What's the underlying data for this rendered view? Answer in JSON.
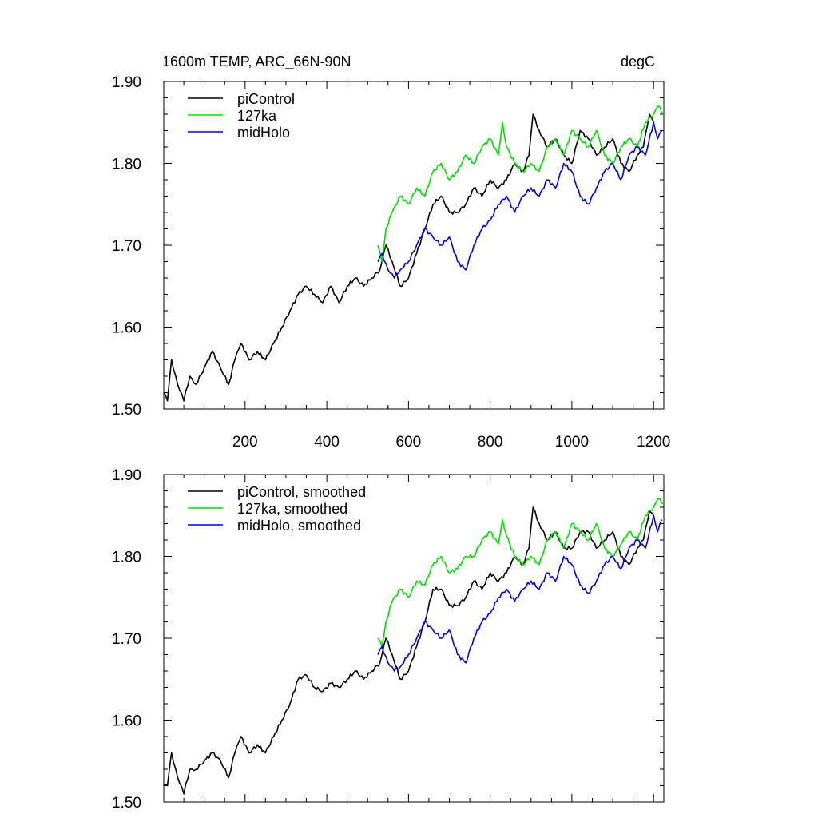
{
  "chart_data": [
    {
      "type": "line",
      "title": "1600m TEMP, ARC_66N-90N",
      "units": "degC",
      "xlim": [
        1,
        1225
      ],
      "ylim": [
        1.5,
        1.9
      ],
      "x_ticks": [
        200,
        400,
        600,
        800,
        1000,
        1200
      ],
      "x_tick_labels": [
        "200",
        "400",
        "600",
        "800",
        "1000",
        "1200"
      ],
      "y_ticks": [
        1.5,
        1.6,
        1.7,
        1.8,
        1.9
      ],
      "y_tick_labels": [
        "1.50",
        "1.60",
        "1.70",
        "1.80",
        "1.90"
      ],
      "legend_position": "top-left",
      "series": [
        {
          "name": "piControl",
          "color": "#000000",
          "x": [
            1,
            10,
            20,
            35,
            50,
            65,
            80,
            100,
            120,
            140,
            160,
            175,
            190,
            210,
            230,
            250,
            270,
            290,
            310,
            330,
            350,
            370,
            390,
            410,
            430,
            450,
            470,
            490,
            510,
            530,
            545,
            560,
            580,
            600,
            620,
            640,
            660,
            680,
            700,
            720,
            740,
            760,
            780,
            800,
            820,
            840,
            860,
            880,
            895,
            905,
            920,
            940,
            960,
            980,
            1000,
            1020,
            1040,
            1060,
            1080,
            1100,
            1120,
            1140,
            1160,
            1175,
            1190,
            1200
          ],
          "y": [
            1.52,
            1.51,
            1.56,
            1.53,
            1.51,
            1.54,
            1.53,
            1.55,
            1.57,
            1.55,
            1.53,
            1.56,
            1.58,
            1.56,
            1.57,
            1.56,
            1.58,
            1.6,
            1.62,
            1.64,
            1.65,
            1.64,
            1.63,
            1.65,
            1.63,
            1.65,
            1.66,
            1.65,
            1.66,
            1.67,
            1.7,
            1.68,
            1.65,
            1.66,
            1.69,
            1.72,
            1.75,
            1.76,
            1.74,
            1.74,
            1.75,
            1.77,
            1.76,
            1.78,
            1.77,
            1.78,
            1.8,
            1.79,
            1.81,
            1.86,
            1.84,
            1.82,
            1.83,
            1.81,
            1.8,
            1.84,
            1.83,
            1.81,
            1.82,
            1.83,
            1.8,
            1.79,
            1.81,
            1.82,
            1.86,
            1.85
          ]
        },
        {
          "name": "127ka",
          "color": "#00e000",
          "x": [
            525,
            535,
            545,
            560,
            580,
            600,
            620,
            640,
            660,
            680,
            700,
            720,
            740,
            760,
            780,
            800,
            820,
            830,
            840,
            860,
            880,
            900,
            920,
            940,
            960,
            980,
            1000,
            1020,
            1040,
            1060,
            1080,
            1100,
            1120,
            1140,
            1160,
            1180,
            1200,
            1210,
            1225
          ],
          "y": [
            1.7,
            1.68,
            1.72,
            1.74,
            1.76,
            1.75,
            1.77,
            1.76,
            1.79,
            1.8,
            1.78,
            1.79,
            1.81,
            1.8,
            1.82,
            1.83,
            1.81,
            1.85,
            1.82,
            1.8,
            1.79,
            1.8,
            1.79,
            1.82,
            1.83,
            1.81,
            1.84,
            1.83,
            1.82,
            1.84,
            1.81,
            1.8,
            1.82,
            1.83,
            1.82,
            1.85,
            1.86,
            1.87,
            1.86
          ]
        },
        {
          "name": "midHolo",
          "color": "#0000e0",
          "x": [
            525,
            535,
            550,
            565,
            580,
            600,
            620,
            640,
            660,
            680,
            700,
            720,
            740,
            760,
            780,
            800,
            820,
            840,
            860,
            880,
            900,
            920,
            940,
            960,
            980,
            1000,
            1020,
            1040,
            1060,
            1080,
            1100,
            1120,
            1140,
            1160,
            1180,
            1200,
            1210,
            1220
          ],
          "y": [
            1.68,
            1.69,
            1.67,
            1.66,
            1.67,
            1.68,
            1.7,
            1.72,
            1.71,
            1.7,
            1.71,
            1.68,
            1.67,
            1.7,
            1.72,
            1.73,
            1.75,
            1.76,
            1.74,
            1.76,
            1.77,
            1.76,
            1.78,
            1.77,
            1.8,
            1.79,
            1.76,
            1.75,
            1.77,
            1.79,
            1.8,
            1.78,
            1.81,
            1.82,
            1.81,
            1.85,
            1.83,
            1.84
          ]
        }
      ]
    },
    {
      "type": "line",
      "title": "",
      "xlim": [
        1,
        1225
      ],
      "ylim": [
        1.5,
        1.9
      ],
      "y_ticks": [
        1.5,
        1.6,
        1.7,
        1.8,
        1.9
      ],
      "y_tick_labels": [
        "1.50",
        "1.60",
        "1.70",
        "1.80",
        "1.90"
      ],
      "legend_position": "top-left",
      "series": [
        {
          "name": "piControl, smoothed",
          "color": "#000000",
          "x": [
            1,
            10,
            20,
            35,
            50,
            65,
            80,
            100,
            120,
            140,
            160,
            175,
            190,
            210,
            230,
            250,
            270,
            290,
            310,
            330,
            350,
            370,
            390,
            410,
            430,
            450,
            470,
            490,
            510,
            530,
            545,
            560,
            580,
            600,
            620,
            640,
            660,
            680,
            700,
            720,
            740,
            760,
            780,
            800,
            820,
            840,
            860,
            880,
            895,
            905,
            920,
            940,
            960,
            980,
            1000,
            1020,
            1040,
            1060,
            1080,
            1100,
            1120,
            1140,
            1160,
            1175,
            1190,
            1200
          ],
          "y": [
            1.52,
            1.52,
            1.56,
            1.53,
            1.51,
            1.54,
            1.54,
            1.55,
            1.56,
            1.55,
            1.53,
            1.56,
            1.58,
            1.56,
            1.57,
            1.56,
            1.58,
            1.6,
            1.62,
            1.65,
            1.655,
            1.64,
            1.635,
            1.645,
            1.64,
            1.65,
            1.66,
            1.65,
            1.66,
            1.67,
            1.7,
            1.68,
            1.65,
            1.66,
            1.69,
            1.72,
            1.76,
            1.76,
            1.74,
            1.74,
            1.75,
            1.77,
            1.76,
            1.78,
            1.77,
            1.78,
            1.8,
            1.79,
            1.81,
            1.86,
            1.84,
            1.82,
            1.83,
            1.81,
            1.81,
            1.83,
            1.83,
            1.81,
            1.82,
            1.83,
            1.8,
            1.79,
            1.81,
            1.82,
            1.855,
            1.85
          ]
        },
        {
          "name": "127ka, smoothed",
          "color": "#00e000",
          "x": [
            525,
            535,
            545,
            560,
            580,
            600,
            620,
            640,
            660,
            680,
            700,
            720,
            740,
            760,
            780,
            800,
            820,
            830,
            840,
            860,
            880,
            900,
            920,
            940,
            960,
            980,
            1000,
            1020,
            1040,
            1060,
            1080,
            1100,
            1120,
            1140,
            1160,
            1180,
            1200,
            1210,
            1225
          ],
          "y": [
            1.7,
            1.69,
            1.72,
            1.745,
            1.76,
            1.75,
            1.77,
            1.765,
            1.79,
            1.8,
            1.78,
            1.785,
            1.8,
            1.8,
            1.82,
            1.83,
            1.815,
            1.845,
            1.825,
            1.8,
            1.79,
            1.8,
            1.79,
            1.82,
            1.83,
            1.81,
            1.84,
            1.83,
            1.82,
            1.84,
            1.81,
            1.8,
            1.815,
            1.83,
            1.82,
            1.85,
            1.86,
            1.87,
            1.865
          ]
        },
        {
          "name": "midHolo, smoothed",
          "color": "#0000e0",
          "x": [
            525,
            535,
            550,
            565,
            580,
            600,
            620,
            640,
            660,
            680,
            700,
            720,
            740,
            760,
            780,
            800,
            820,
            840,
            860,
            880,
            900,
            920,
            940,
            960,
            980,
            1000,
            1020,
            1040,
            1060,
            1080,
            1100,
            1120,
            1140,
            1160,
            1180,
            1200,
            1210,
            1220
          ],
          "y": [
            1.68,
            1.69,
            1.67,
            1.66,
            1.665,
            1.68,
            1.7,
            1.72,
            1.71,
            1.7,
            1.71,
            1.68,
            1.67,
            1.7,
            1.72,
            1.73,
            1.75,
            1.76,
            1.745,
            1.76,
            1.77,
            1.76,
            1.78,
            1.77,
            1.8,
            1.79,
            1.765,
            1.755,
            1.77,
            1.79,
            1.8,
            1.785,
            1.81,
            1.82,
            1.81,
            1.85,
            1.83,
            1.845
          ]
        }
      ]
    }
  ]
}
